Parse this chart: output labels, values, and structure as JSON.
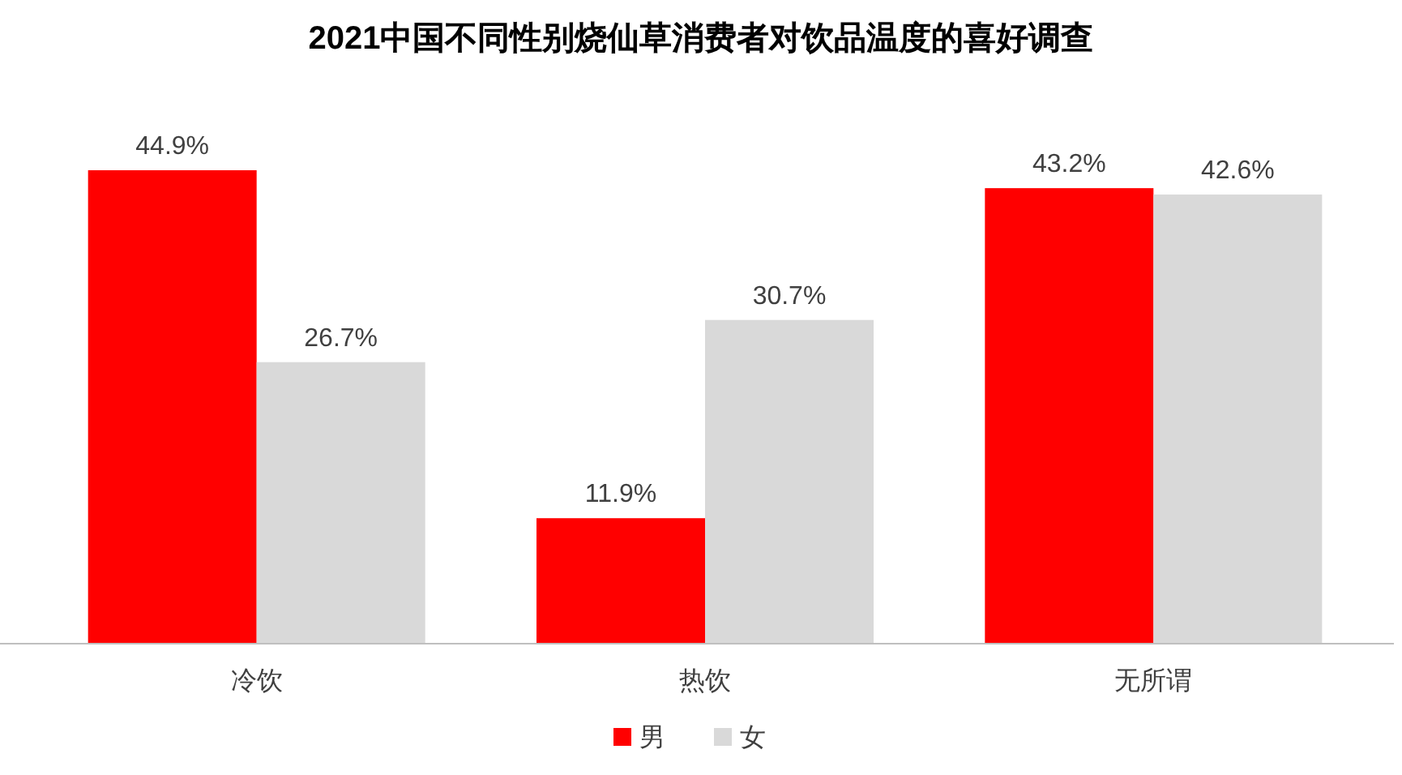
{
  "chart_data": {
    "type": "bar",
    "title": "2021中国不同性别烧仙草消费者对饮品温度的喜好调查",
    "categories": [
      "冷饮",
      "热饮",
      "无所谓"
    ],
    "series": [
      {
        "name": "男",
        "color": "#ff0000",
        "values": [
          44.9,
          11.9,
          43.2
        ],
        "value_labels": [
          "44.9%",
          "11.9%",
          "43.2%"
        ]
      },
      {
        "name": "女",
        "color": "#d9d9d9",
        "values": [
          26.7,
          30.7,
          42.6
        ],
        "value_labels": [
          "26.7%",
          "30.7%",
          "42.6%"
        ]
      }
    ],
    "legend": "bottom"
  }
}
